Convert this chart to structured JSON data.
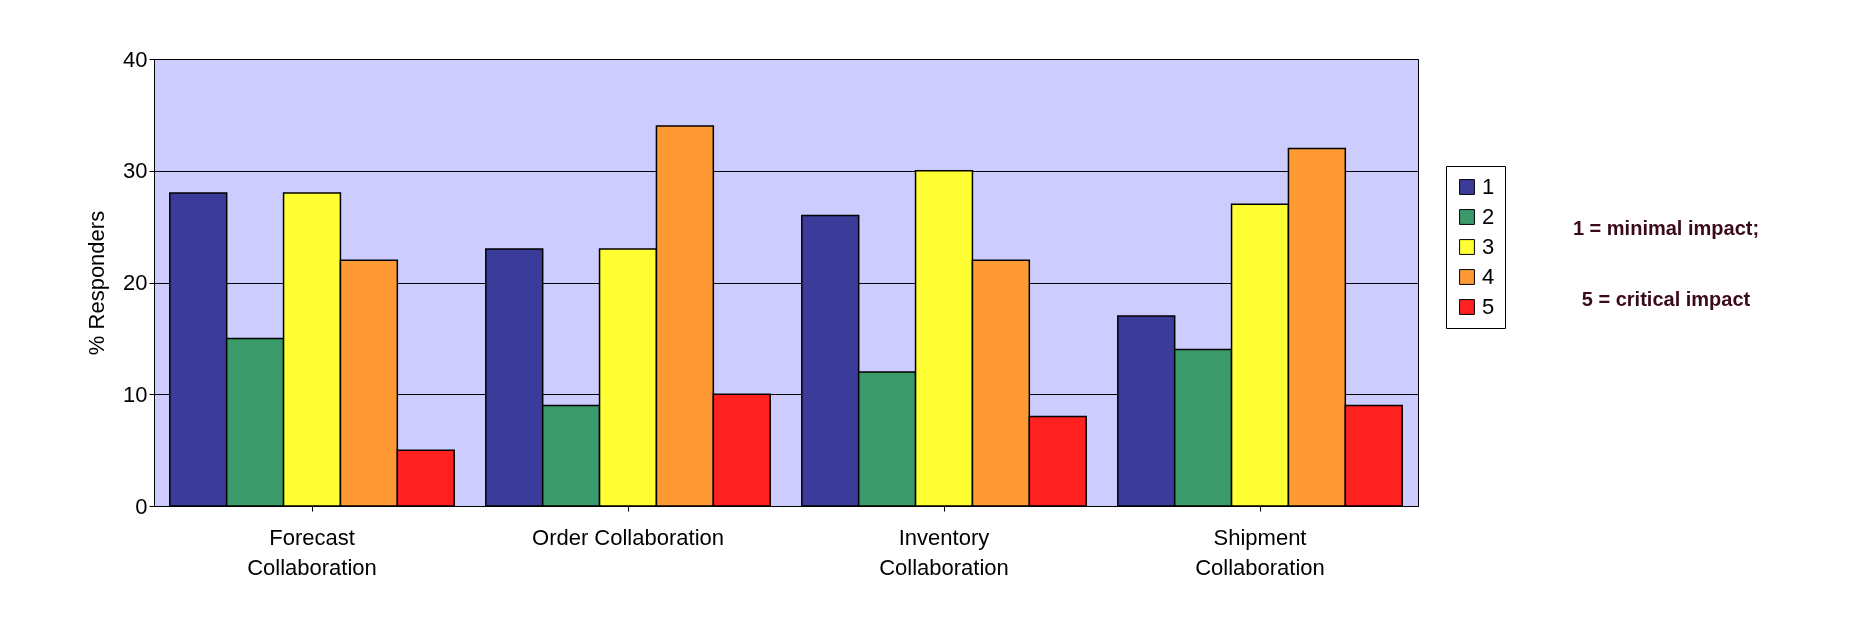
{
  "chart_data": {
    "type": "bar",
    "ylabel": "% Responders",
    "categories": [
      "Forecast Collaboration",
      "Order Collaboration",
      "Inventory Collaboration",
      "Shipment Collaboration"
    ],
    "series": [
      {
        "name": "1",
        "color": "#3b3b9a",
        "values": [
          28,
          23,
          26,
          17
        ]
      },
      {
        "name": "2",
        "color": "#3a9a6a",
        "values": [
          15,
          9,
          12,
          14
        ]
      },
      {
        "name": "3",
        "color": "#ffff33",
        "values": [
          28,
          23,
          30,
          27
        ]
      },
      {
        "name": "4",
        "color": "#ff9933",
        "values": [
          22,
          34,
          22,
          32
        ]
      },
      {
        "name": "5",
        "color": "#ff2020",
        "values": [
          5,
          10,
          8,
          9
        ]
      }
    ],
    "ylim": [
      0,
      40
    ],
    "yticks": [
      0,
      10,
      20,
      30,
      40
    ],
    "grid": "y",
    "legend": "right",
    "annotations": [
      "1 = minimal impact;",
      "5 = critical  impact"
    ]
  }
}
